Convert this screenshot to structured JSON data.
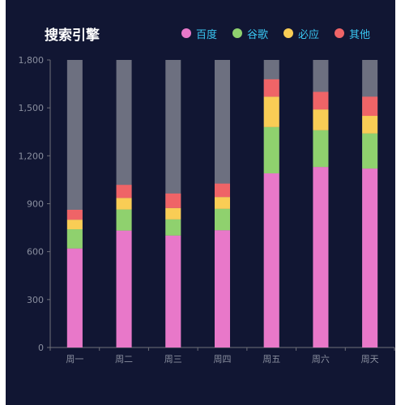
{
  "chart_data": {
    "type": "bar",
    "stacked": true,
    "title": "搜索引擎",
    "categories": [
      "周一",
      "周二",
      "周三",
      "周四",
      "周五",
      "周六",
      "周天"
    ],
    "ylim": [
      0,
      1800
    ],
    "yticks": [
      "0",
      "300",
      "600",
      "900",
      "1,200",
      "1,500",
      "1,800"
    ],
    "ytick_values": [
      0,
      300,
      600,
      900,
      1200,
      1500,
      1800
    ],
    "legend_position": "top-right",
    "grid": false,
    "background_bar": {
      "value": 1800,
      "color": "#6d7080"
    },
    "series": [
      {
        "name": "百度",
        "color": "#e878c9",
        "values": [
          620,
          732,
          701,
          734,
          1090,
          1130,
          1120
        ]
      },
      {
        "name": "谷歌",
        "color": "#8fd16e",
        "values": [
          120,
          132,
          101,
          134,
          290,
          230,
          220
        ]
      },
      {
        "name": "必应",
        "color": "#f9cd55",
        "values": [
          60,
          72,
          71,
          74,
          190,
          130,
          110
        ]
      },
      {
        "name": "其他",
        "color": "#ef6467",
        "values": [
          62,
          82,
          91,
          84,
          109,
          110,
          120
        ]
      }
    ]
  },
  "colors": {
    "background": "#111633",
    "title": "#ffffff",
    "legend_text": "#39c5f0",
    "axis_line": "#6e7079",
    "axis_label": "#8a8f9f"
  }
}
